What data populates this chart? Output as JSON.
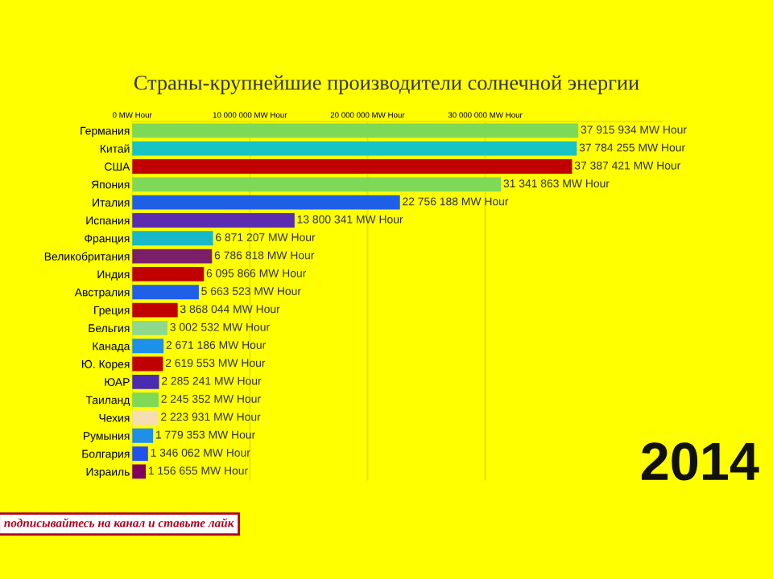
{
  "chart_data": {
    "type": "bar",
    "orientation": "horizontal",
    "title": "Страны-крупнейшие производители солнечной энергии",
    "categories": [
      "Германия",
      "Китай",
      "США",
      "Япония",
      "Италия",
      "Испания",
      "Франция",
      "Великобритания",
      "Индия",
      "Австралия",
      "Греция",
      "Бельгия",
      "Канада",
      "Ю. Корея",
      "ЮАР",
      "Таиланд",
      "Чехия",
      "Румыния",
      "Болгария",
      "Израиль"
    ],
    "values": [
      37915934,
      37784255,
      37387421,
      31341863,
      22756188,
      13800341,
      6871207,
      6786818,
      6095866,
      5663523,
      3868044,
      3002532,
      2671186,
      2619553,
      2285241,
      2245352,
      2223931,
      1779353,
      1346062,
      1156655
    ],
    "colors": [
      "#7ed957",
      "#17c3c3",
      "#c00000",
      "#7fd957",
      "#1f5fe8",
      "#5b2bb0",
      "#17b8c8",
      "#7b1f6a",
      "#c00000",
      "#2060e8",
      "#c00000",
      "#8fd98f",
      "#1e90e8",
      "#c00000",
      "#4b2bb0",
      "#7ed957",
      "#f5deb3",
      "#1e90e8",
      "#2050f0",
      "#800060"
    ],
    "value_labels": [
      "37 915 934 MW Hour",
      "37 784 255 MW Hour",
      "37 387 421 MW Hour",
      "31 341 863 MW Hour",
      "22 756 188 MW Hour",
      "13 800 341 MW Hour",
      "6 871 207 MW Hour",
      "6 786 818 MW Hour",
      "6 095 866 MW Hour",
      "5 663 523 MW Hour",
      "3 868 044 MW Hour",
      "3 002 532 MW Hour",
      "2 671 186 MW Hour",
      "2 619 553 MW Hour",
      "2 285 241 MW Hour",
      "2 245 352 MW Hour",
      "2 223 931 MW Hour",
      "1 779 353 MW Hour",
      "1 346 062 MW Hour",
      "1 156 655 MW Hour"
    ],
    "xlim": [
      0,
      45000000
    ],
    "xticks": [
      {
        "value": 0,
        "label": "0 MW Hour"
      },
      {
        "value": 10000000,
        "label": "10 000 000 MW Hour"
      },
      {
        "value": 20000000,
        "label": "20 000 000 MW Hour"
      },
      {
        "value": 30000000,
        "label": "30 000 000 MW Hour"
      }
    ],
    "grid": "x",
    "annotations": [
      "2014",
      "подписывайтесь на канал и ставьте лайк"
    ]
  }
}
